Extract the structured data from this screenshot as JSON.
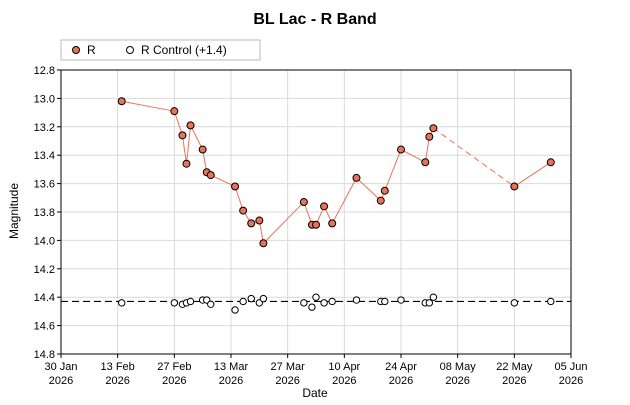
{
  "chart_data": {
    "type": "line",
    "title": "BL Lac - R Band",
    "xlabel": "Date",
    "ylabel": "Magnitude",
    "x_range": [
      "2026-01-30",
      "2026-06-05"
    ],
    "ylim": [
      12.8,
      14.8
    ],
    "y_inverted": true,
    "grid": true,
    "legend_position": "top-left",
    "x_ticks": [
      {
        "date": "2026-01-30",
        "label": [
          "30 Jan",
          "2026"
        ]
      },
      {
        "date": "2026-02-13",
        "label": [
          "13 Feb",
          "2026"
        ]
      },
      {
        "date": "2026-02-27",
        "label": [
          "27 Feb",
          "2026"
        ]
      },
      {
        "date": "2026-03-13",
        "label": [
          "13 Mar",
          "2026"
        ]
      },
      {
        "date": "2026-03-27",
        "label": [
          "27 Mar",
          "2026"
        ]
      },
      {
        "date": "2026-04-10",
        "label": [
          "10 Apr",
          "2026"
        ]
      },
      {
        "date": "2026-04-24",
        "label": [
          "24 Apr",
          "2026"
        ]
      },
      {
        "date": "2026-05-08",
        "label": [
          "08 May",
          "2026"
        ]
      },
      {
        "date": "2026-05-22",
        "label": [
          "22 May",
          "2026"
        ]
      },
      {
        "date": "2026-06-05",
        "label": [
          "05 Jun",
          "2026"
        ]
      }
    ],
    "y_ticks": [
      "12.8",
      "13.0",
      "13.2",
      "13.4",
      "13.6",
      "13.8",
      "14.0",
      "14.2",
      "14.4",
      "14.6",
      "14.8"
    ],
    "reference_line": {
      "y": 14.43,
      "style": "dashed"
    },
    "series": [
      {
        "name": "R",
        "color": "#e8735a",
        "marker": "filled-circle",
        "points": [
          {
            "x": "2026-02-14",
            "y": 13.02
          },
          {
            "x": "2026-02-27",
            "y": 13.09
          },
          {
            "x": "2026-02-29",
            "y": 13.26
          },
          {
            "x": "2026-03-02",
            "y": 13.46
          },
          {
            "x": "2026-03-03",
            "y": 13.19
          },
          {
            "x": "2026-03-06",
            "y": 13.36
          },
          {
            "x": "2026-03-07",
            "y": 13.52
          },
          {
            "x": "2026-03-08",
            "y": 13.54
          },
          {
            "x": "2026-03-14",
            "y": 13.62
          },
          {
            "x": "2026-03-16",
            "y": 13.79
          },
          {
            "x": "2026-03-18",
            "y": 13.88
          },
          {
            "x": "2026-03-20",
            "y": 13.86
          },
          {
            "x": "2026-03-21",
            "y": 14.02
          },
          {
            "x": "2026-04-00",
            "y": 13.73
          },
          {
            "x": "2026-04-02",
            "y": 13.89
          },
          {
            "x": "2026-04-03",
            "y": 13.89
          },
          {
            "x": "2026-04-05",
            "y": 13.76
          },
          {
            "x": "2026-04-07",
            "y": 13.88
          },
          {
            "x": "2026-04-13",
            "y": 13.56
          },
          {
            "x": "2026-04-19",
            "y": 13.72
          },
          {
            "x": "2026-04-20",
            "y": 13.65
          },
          {
            "x": "2026-04-24",
            "y": 13.36
          },
          {
            "x": "2026-04-30",
            "y": 13.45
          },
          {
            "x": "2026-05-01",
            "y": 13.27
          },
          {
            "x": "2026-05-02",
            "y": 13.21
          },
          {
            "x": "2026-05-22",
            "y": 13.62
          },
          {
            "x": "2026-05-31",
            "y": 13.45
          }
        ],
        "gap_after_date": "2026-05-02"
      },
      {
        "name": "R Control (+1.4)",
        "color": "#ffffff",
        "marker": "open-circle",
        "points": [
          {
            "x": "2026-02-14",
            "y": 14.44
          },
          {
            "x": "2026-02-27",
            "y": 14.44
          },
          {
            "x": "2026-02-29",
            "y": 14.45
          },
          {
            "x": "2026-03-02",
            "y": 14.44
          },
          {
            "x": "2026-03-03",
            "y": 14.43
          },
          {
            "x": "2026-03-06",
            "y": 14.42
          },
          {
            "x": "2026-03-07",
            "y": 14.42
          },
          {
            "x": "2026-03-08",
            "y": 14.45
          },
          {
            "x": "2026-03-14",
            "y": 14.49
          },
          {
            "x": "2026-03-16",
            "y": 14.43
          },
          {
            "x": "2026-03-18",
            "y": 14.41
          },
          {
            "x": "2026-03-20",
            "y": 14.44
          },
          {
            "x": "2026-03-21",
            "y": 14.41
          },
          {
            "x": "2026-04-00",
            "y": 14.44
          },
          {
            "x": "2026-04-02",
            "y": 14.47
          },
          {
            "x": "2026-04-03",
            "y": 14.4
          },
          {
            "x": "2026-04-05",
            "y": 14.44
          },
          {
            "x": "2026-04-07",
            "y": 14.43
          },
          {
            "x": "2026-04-13",
            "y": 14.42
          },
          {
            "x": "2026-04-19",
            "y": 14.43
          },
          {
            "x": "2026-04-20",
            "y": 14.43
          },
          {
            "x": "2026-04-24",
            "y": 14.42
          },
          {
            "x": "2026-04-30",
            "y": 14.44
          },
          {
            "x": "2026-05-01",
            "y": 14.44
          },
          {
            "x": "2026-05-02",
            "y": 14.4
          },
          {
            "x": "2026-05-22",
            "y": 14.44
          },
          {
            "x": "2026-05-31",
            "y": 14.43
          }
        ]
      }
    ]
  }
}
